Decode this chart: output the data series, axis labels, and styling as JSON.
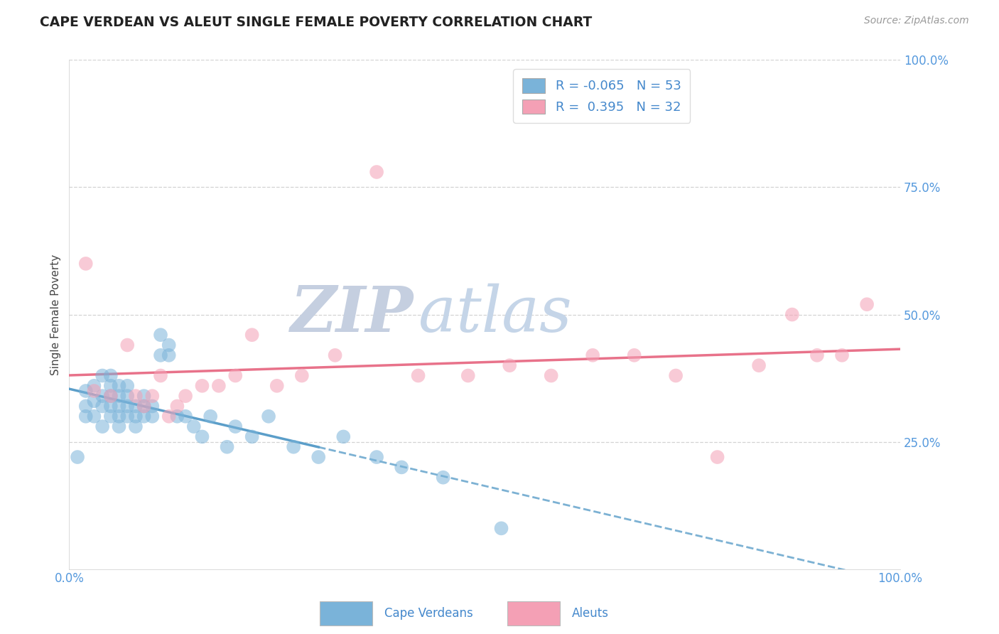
{
  "title": "CAPE VERDEAN VS ALEUT SINGLE FEMALE POVERTY CORRELATION CHART",
  "source_text": "Source: ZipAtlas.com",
  "ylabel": "Single Female Poverty",
  "legend_label1": "Cape Verdeans",
  "legend_label2": "Aleuts",
  "r1": -0.065,
  "n1": 53,
  "r2": 0.395,
  "n2": 32,
  "color_blue": "#7ab3d9",
  "color_pink": "#f4a0b5",
  "trend_blue": "#5b9ec9",
  "trend_pink": "#e8728a",
  "grid_color": "#c8c8c8",
  "watermark_zip_color": "#c5cfe0",
  "watermark_atlas_color": "#c5d5e8",
  "background": "#ffffff",
  "xlim": [
    0.0,
    1.0
  ],
  "ylim": [
    0.0,
    1.0
  ],
  "ytick_labels": [
    "25.0%",
    "50.0%",
    "75.0%",
    "100.0%"
  ],
  "ytick_values": [
    0.25,
    0.5,
    0.75,
    1.0
  ],
  "xtick_labels": [
    "0.0%",
    "100.0%"
  ],
  "xtick_values": [
    0.0,
    1.0
  ],
  "cape_verdean_x": [
    0.01,
    0.02,
    0.02,
    0.02,
    0.03,
    0.03,
    0.03,
    0.04,
    0.04,
    0.04,
    0.04,
    0.05,
    0.05,
    0.05,
    0.05,
    0.05,
    0.06,
    0.06,
    0.06,
    0.06,
    0.06,
    0.07,
    0.07,
    0.07,
    0.07,
    0.08,
    0.08,
    0.08,
    0.09,
    0.09,
    0.09,
    0.1,
    0.1,
    0.11,
    0.11,
    0.12,
    0.12,
    0.13,
    0.14,
    0.15,
    0.16,
    0.17,
    0.19,
    0.2,
    0.22,
    0.24,
    0.27,
    0.3,
    0.33,
    0.37,
    0.4,
    0.45,
    0.52
  ],
  "cape_verdean_y": [
    0.22,
    0.3,
    0.32,
    0.35,
    0.3,
    0.33,
    0.36,
    0.28,
    0.32,
    0.34,
    0.38,
    0.3,
    0.32,
    0.34,
    0.36,
    0.38,
    0.28,
    0.3,
    0.32,
    0.34,
    0.36,
    0.3,
    0.32,
    0.34,
    0.36,
    0.28,
    0.3,
    0.32,
    0.3,
    0.32,
    0.34,
    0.3,
    0.32,
    0.42,
    0.46,
    0.44,
    0.42,
    0.3,
    0.3,
    0.28,
    0.26,
    0.3,
    0.24,
    0.28,
    0.26,
    0.3,
    0.24,
    0.22,
    0.26,
    0.22,
    0.2,
    0.18,
    0.08
  ],
  "aleut_x": [
    0.02,
    0.03,
    0.05,
    0.07,
    0.08,
    0.09,
    0.1,
    0.11,
    0.12,
    0.13,
    0.14,
    0.16,
    0.18,
    0.2,
    0.22,
    0.25,
    0.28,
    0.32,
    0.37,
    0.42,
    0.48,
    0.53,
    0.58,
    0.63,
    0.68,
    0.73,
    0.78,
    0.83,
    0.87,
    0.9,
    0.93,
    0.96
  ],
  "aleut_y": [
    0.6,
    0.35,
    0.34,
    0.44,
    0.34,
    0.32,
    0.34,
    0.38,
    0.3,
    0.32,
    0.34,
    0.36,
    0.36,
    0.38,
    0.46,
    0.36,
    0.38,
    0.42,
    0.78,
    0.38,
    0.38,
    0.4,
    0.38,
    0.42,
    0.42,
    0.38,
    0.22,
    0.4,
    0.5,
    0.42,
    0.42,
    0.52
  ]
}
